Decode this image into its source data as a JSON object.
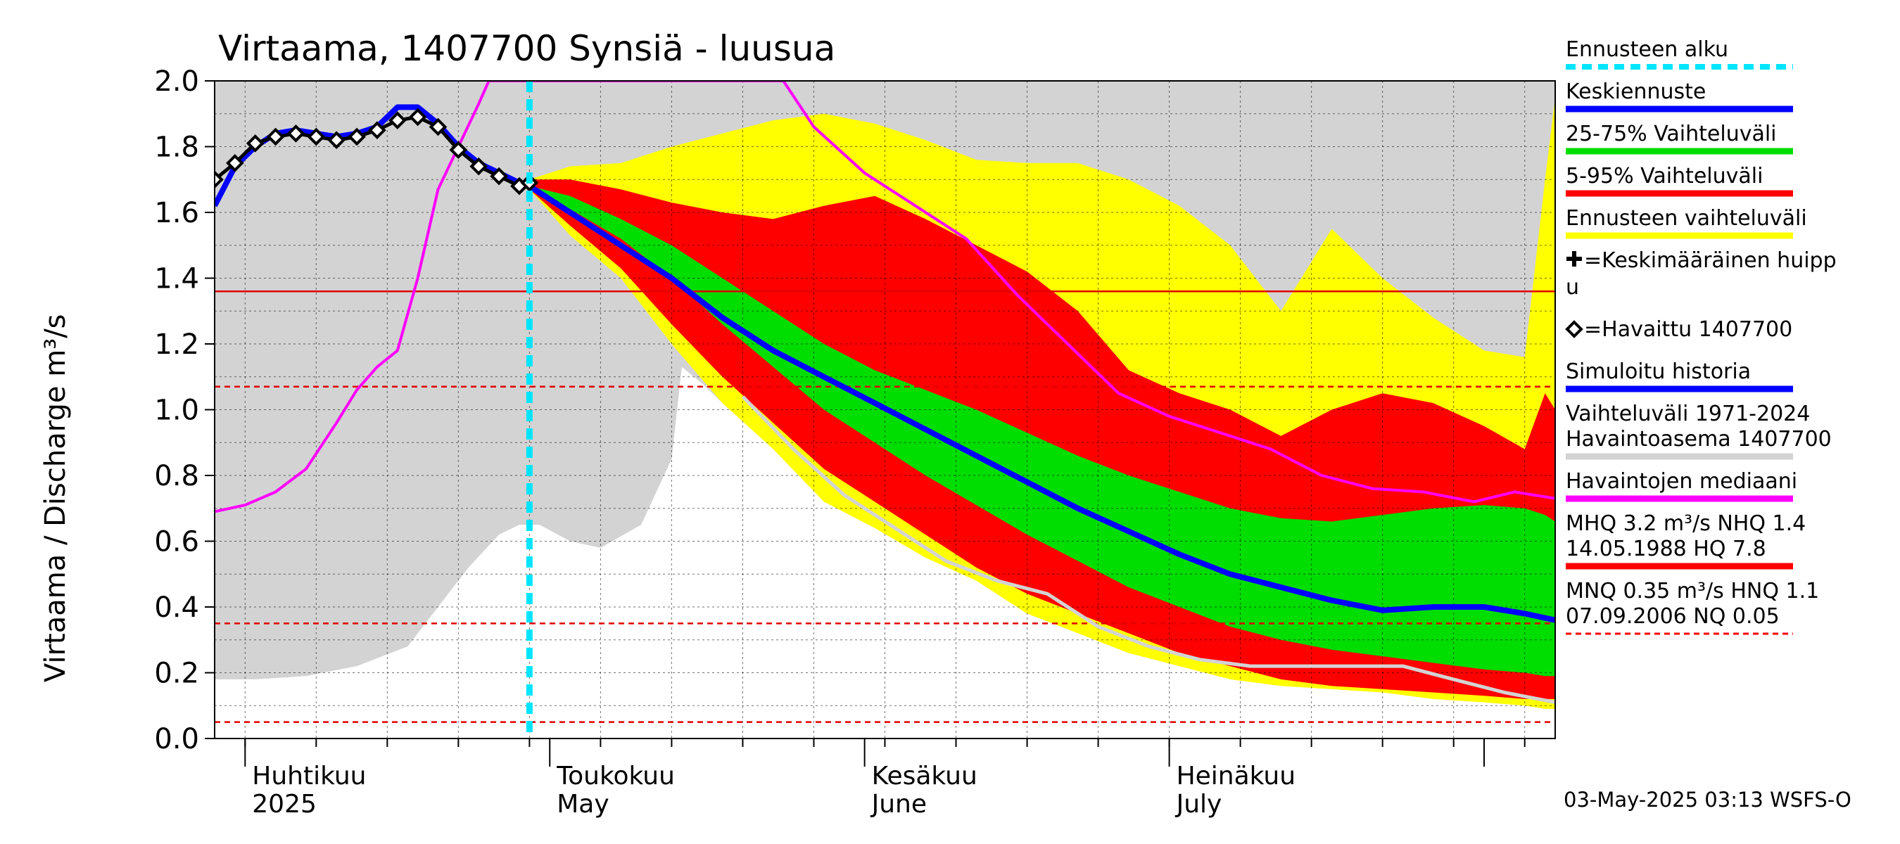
{
  "chart_data": {
    "type": "area",
    "title": "Virtaama, 1407700 Synsiä - luusua",
    "ylabel": "Virtaama / Discharge    m³/s",
    "ylim": [
      0,
      2.0
    ],
    "yticks": [
      "0.0",
      "0.2",
      "0.4",
      "0.6",
      "0.8",
      "1.0",
      "1.2",
      "1.4",
      "1.6",
      "1.8",
      "2.0"
    ],
    "xlim": [
      "2025-03-29",
      "2025-08-08"
    ],
    "month_labels": [
      {
        "fi": "Huhtikuu",
        "en": "2025",
        "date": "2025-04-01"
      },
      {
        "fi": "Toukokuu",
        "en": "May",
        "date": "2025-05-01"
      },
      {
        "fi": "Kesäkuu",
        "en": "June",
        "date": "2025-06-01"
      },
      {
        "fi": "Heinäkuu",
        "en": "July",
        "date": "2025-07-01"
      }
    ],
    "forecast_start": "2025-04-29",
    "hlines": [
      {
        "value": 1.36,
        "style": "solid",
        "color": "#e00000"
      },
      {
        "value": 1.07,
        "style": "dashed",
        "color": "#e00000"
      },
      {
        "value": 0.35,
        "style": "dashed",
        "color": "#e00000"
      },
      {
        "value": 0.05,
        "style": "dashed",
        "color": "#e00000"
      }
    ],
    "history_band": {
      "name": "Vaihteluväli 1971-2024 Havaintoasema 1407700",
      "color": "#d3d3d3",
      "x": [
        "2025-03-29",
        "2025-04-02",
        "2025-04-07",
        "2025-04-12",
        "2025-04-17",
        "2025-04-20",
        "2025-04-23",
        "2025-04-26",
        "2025-04-28",
        "2025-04-30",
        "2025-05-03",
        "2025-05-06",
        "2025-05-10",
        "2025-05-13",
        "2025-05-14",
        "2025-05-16",
        "2025-05-18",
        "2025-05-20",
        "2025-05-22",
        "2025-05-25",
        "2025-05-28",
        "2025-06-01",
        "2025-06-05",
        "2025-06-10",
        "2025-06-15",
        "2025-06-20",
        "2025-06-25",
        "2025-06-30",
        "2025-07-03",
        "2025-07-06",
        "2025-07-09",
        "2025-07-12",
        "2025-07-16",
        "2025-07-20",
        "2025-07-24",
        "2025-07-28",
        "2025-07-31",
        "2025-08-03",
        "2025-08-06",
        "2025-08-08"
      ],
      "low": [
        0.18,
        0.18,
        0.19,
        0.22,
        0.28,
        0.4,
        0.52,
        0.62,
        0.65,
        0.65,
        0.6,
        0.58,
        0.65,
        0.85,
        1.13,
        1.08,
        1.02,
        1.0,
        1.0,
        1.0,
        1.0,
        1.0,
        0.98,
        0.92,
        0.86,
        0.76,
        0.66,
        0.58,
        0.55,
        0.52,
        0.48,
        0.44,
        0.4,
        0.36,
        0.3,
        0.26,
        0.22,
        0.2,
        0.18,
        0.1
      ],
      "high": [
        2.0,
        2.0,
        2.0,
        2.0,
        2.0,
        2.0,
        2.0,
        2.0,
        2.0,
        2.0,
        2.0,
        2.0,
        2.0,
        2.0,
        2.0,
        2.0,
        2.0,
        2.0,
        2.0,
        2.0,
        2.0,
        2.0,
        2.0,
        2.0,
        2.0,
        2.0,
        2.0,
        2.0,
        2.0,
        2.0,
        2.0,
        2.0,
        2.0,
        2.0,
        2.0,
        2.0,
        2.0,
        2.0,
        2.0,
        2.0
      ]
    },
    "forecast_bands": {
      "x": [
        "2025-04-29",
        "2025-05-03",
        "2025-05-08",
        "2025-05-13",
        "2025-05-18",
        "2025-05-23",
        "2025-05-28",
        "2025-06-02",
        "2025-06-07",
        "2025-06-12",
        "2025-06-17",
        "2025-06-22",
        "2025-06-27",
        "2025-07-02",
        "2025-07-07",
        "2025-07-12",
        "2025-07-17",
        "2025-07-22",
        "2025-07-27",
        "2025-08-01",
        "2025-08-05",
        "2025-08-07",
        "2025-08-08"
      ],
      "yellow_low": [
        1.67,
        1.53,
        1.4,
        1.2,
        1.02,
        0.88,
        0.72,
        0.64,
        0.55,
        0.48,
        0.38,
        0.32,
        0.26,
        0.22,
        0.18,
        0.16,
        0.15,
        0.14,
        0.12,
        0.11,
        0.1,
        0.09,
        0.09
      ],
      "yellow_high": [
        1.7,
        1.74,
        1.75,
        1.8,
        1.84,
        1.88,
        1.9,
        1.87,
        1.82,
        1.76,
        1.75,
        1.75,
        1.7,
        1.62,
        1.5,
        1.3,
        1.55,
        1.4,
        1.28,
        1.18,
        1.16,
        1.7,
        1.95
      ],
      "red_low": [
        1.67,
        1.56,
        1.43,
        1.26,
        1.1,
        0.96,
        0.82,
        0.72,
        0.62,
        0.52,
        0.44,
        0.38,
        0.32,
        0.26,
        0.22,
        0.18,
        0.16,
        0.15,
        0.14,
        0.13,
        0.12,
        0.12,
        0.12
      ],
      "red_high": [
        1.7,
        1.7,
        1.67,
        1.63,
        1.6,
        1.58,
        1.62,
        1.65,
        1.58,
        1.5,
        1.42,
        1.3,
        1.12,
        1.05,
        1.0,
        0.92,
        1.0,
        1.05,
        1.02,
        0.95,
        0.88,
        1.05,
        1.0
      ],
      "green_low": [
        1.67,
        1.61,
        1.52,
        1.4,
        1.26,
        1.13,
        1.0,
        0.9,
        0.8,
        0.71,
        0.62,
        0.54,
        0.46,
        0.4,
        0.34,
        0.3,
        0.27,
        0.25,
        0.23,
        0.21,
        0.2,
        0.19,
        0.19
      ],
      "green_high": [
        1.68,
        1.65,
        1.58,
        1.5,
        1.4,
        1.3,
        1.2,
        1.12,
        1.06,
        1.0,
        0.93,
        0.86,
        0.8,
        0.75,
        0.7,
        0.67,
        0.66,
        0.68,
        0.7,
        0.71,
        0.7,
        0.68,
        0.66
      ],
      "yellow_color": "#ffff00",
      "red_color": "#ff0000",
      "green_color": "#00dd00"
    },
    "series": [
      {
        "name": "Simuloitu historia",
        "color": "#0000ff",
        "x": [
          "2025-03-29",
          "2025-03-31",
          "2025-04-02",
          "2025-04-04",
          "2025-04-06",
          "2025-04-08",
          "2025-04-10",
          "2025-04-12",
          "2025-04-14",
          "2025-04-16",
          "2025-04-18",
          "2025-04-20",
          "2025-04-22",
          "2025-04-24",
          "2025-04-26",
          "2025-04-28",
          "2025-04-29"
        ],
        "y": [
          1.62,
          1.74,
          1.8,
          1.84,
          1.85,
          1.84,
          1.83,
          1.84,
          1.86,
          1.92,
          1.92,
          1.87,
          1.8,
          1.75,
          1.72,
          1.69,
          1.68
        ]
      },
      {
        "name": "Keskiennuste",
        "color": "#0000ff",
        "x": [
          "2025-04-29",
          "2025-05-03",
          "2025-05-08",
          "2025-05-13",
          "2025-05-18",
          "2025-05-23",
          "2025-05-28",
          "2025-06-02",
          "2025-06-07",
          "2025-06-12",
          "2025-06-17",
          "2025-06-22",
          "2025-06-27",
          "2025-07-02",
          "2025-07-07",
          "2025-07-12",
          "2025-07-17",
          "2025-07-22",
          "2025-07-27",
          "2025-08-01",
          "2025-08-05",
          "2025-08-08"
        ],
        "y": [
          1.68,
          1.6,
          1.5,
          1.4,
          1.28,
          1.18,
          1.1,
          1.02,
          0.94,
          0.86,
          0.78,
          0.7,
          0.63,
          0.56,
          0.5,
          0.46,
          0.42,
          0.39,
          0.4,
          0.4,
          0.38,
          0.36
        ]
      },
      {
        "name": "Havaintojen mediaani",
        "color": "#ff00ff",
        "x": [
          "2025-03-29",
          "2025-04-01",
          "2025-04-04",
          "2025-04-07",
          "2025-04-10",
          "2025-04-12",
          "2025-04-14",
          "2025-04-16",
          "2025-04-18",
          "2025-04-20",
          "2025-04-22",
          "2025-04-24",
          "2025-04-25",
          "2025-05-24",
          "2025-05-27",
          "2025-06-01",
          "2025-06-06",
          "2025-06-11",
          "2025-06-16",
          "2025-06-21",
          "2025-06-26",
          "2025-07-01",
          "2025-07-06",
          "2025-07-11",
          "2025-07-16",
          "2025-07-21",
          "2025-07-26",
          "2025-07-31",
          "2025-08-04",
          "2025-08-08"
        ],
        "y": [
          0.69,
          0.71,
          0.75,
          0.82,
          0.96,
          1.06,
          1.13,
          1.18,
          1.4,
          1.67,
          1.8,
          1.93,
          2.0,
          2.0,
          1.86,
          1.72,
          1.62,
          1.52,
          1.35,
          1.2,
          1.05,
          0.98,
          0.93,
          0.88,
          0.8,
          0.76,
          0.75,
          0.72,
          0.75,
          0.73
        ]
      },
      {
        "name": "Havaintojen alaraja",
        "color": "#d3d3d3",
        "x": [
          "2025-05-20",
          "2025-05-25",
          "2025-05-30",
          "2025-06-04",
          "2025-06-09",
          "2025-06-14",
          "2025-06-19",
          "2025-06-24",
          "2025-06-29",
          "2025-07-04",
          "2025-07-09",
          "2025-07-14",
          "2025-07-19",
          "2025-07-24",
          "2025-07-29",
          "2025-08-03",
          "2025-08-08"
        ],
        "y": [
          1.04,
          0.88,
          0.74,
          0.64,
          0.54,
          0.48,
          0.44,
          0.34,
          0.28,
          0.24,
          0.22,
          0.22,
          0.22,
          0.22,
          0.18,
          0.14,
          0.11
        ]
      }
    ],
    "observed": {
      "name": "=Havaittu 1407700",
      "x": [
        "2025-03-29",
        "2025-03-31",
        "2025-04-02",
        "2025-04-04",
        "2025-04-06",
        "2025-04-08",
        "2025-04-10",
        "2025-04-12",
        "2025-04-14",
        "2025-04-16",
        "2025-04-18",
        "2025-04-20",
        "2025-04-22",
        "2025-04-24",
        "2025-04-26",
        "2025-04-28",
        "2025-04-29"
      ],
      "y": [
        1.7,
        1.75,
        1.81,
        1.83,
        1.84,
        1.83,
        1.82,
        1.83,
        1.85,
        1.88,
        1.89,
        1.86,
        1.79,
        1.74,
        1.71,
        1.68,
        1.69
      ]
    },
    "legend": [
      {
        "label": "Ennusteen alku",
        "color": "#00e5ff",
        "style": "dashed"
      },
      {
        "label": "Keskiennuste",
        "color": "#0000ff",
        "style": "line"
      },
      {
        "label": "25-75% Vaihteluväli",
        "color": "#00dd00",
        "style": "line"
      },
      {
        "label": "5-95% Vaihteluväli",
        "color": "#ff0000",
        "style": "line"
      },
      {
        "label": "Ennusteen vaihteluväli",
        "color": "#ffff00",
        "style": "line"
      },
      {
        "label": "=Keskimääräinen huipp",
        "label2": "u",
        "marker": "plus"
      },
      {
        "label": "=Havaittu 1407700",
        "marker": "diamond"
      },
      {
        "label": "Simuloitu historia",
        "color": "#0000ff",
        "style": "line"
      },
      {
        "label": "Vaihteluväli 1971-2024",
        "label2": " Havaintoasema 1407700",
        "color": "#d3d3d3",
        "style": "line"
      },
      {
        "label": "Havaintojen mediaani",
        "color": "#ff00ff",
        "style": "line"
      },
      {
        "label": "MHQ  3.2 m³/s NHQ  1.4",
        "label2": "14.05.1988 HQ  7.8",
        "color": "#ff0000",
        "style": "line"
      },
      {
        "label": "MNQ 0.35 m³/s HNQ  1.1",
        "label2": "07.09.2006 NQ 0.05",
        "color": "#ff0000",
        "style": "dashed"
      }
    ],
    "footer": "03-May-2025 03:13 WSFS-O"
  }
}
